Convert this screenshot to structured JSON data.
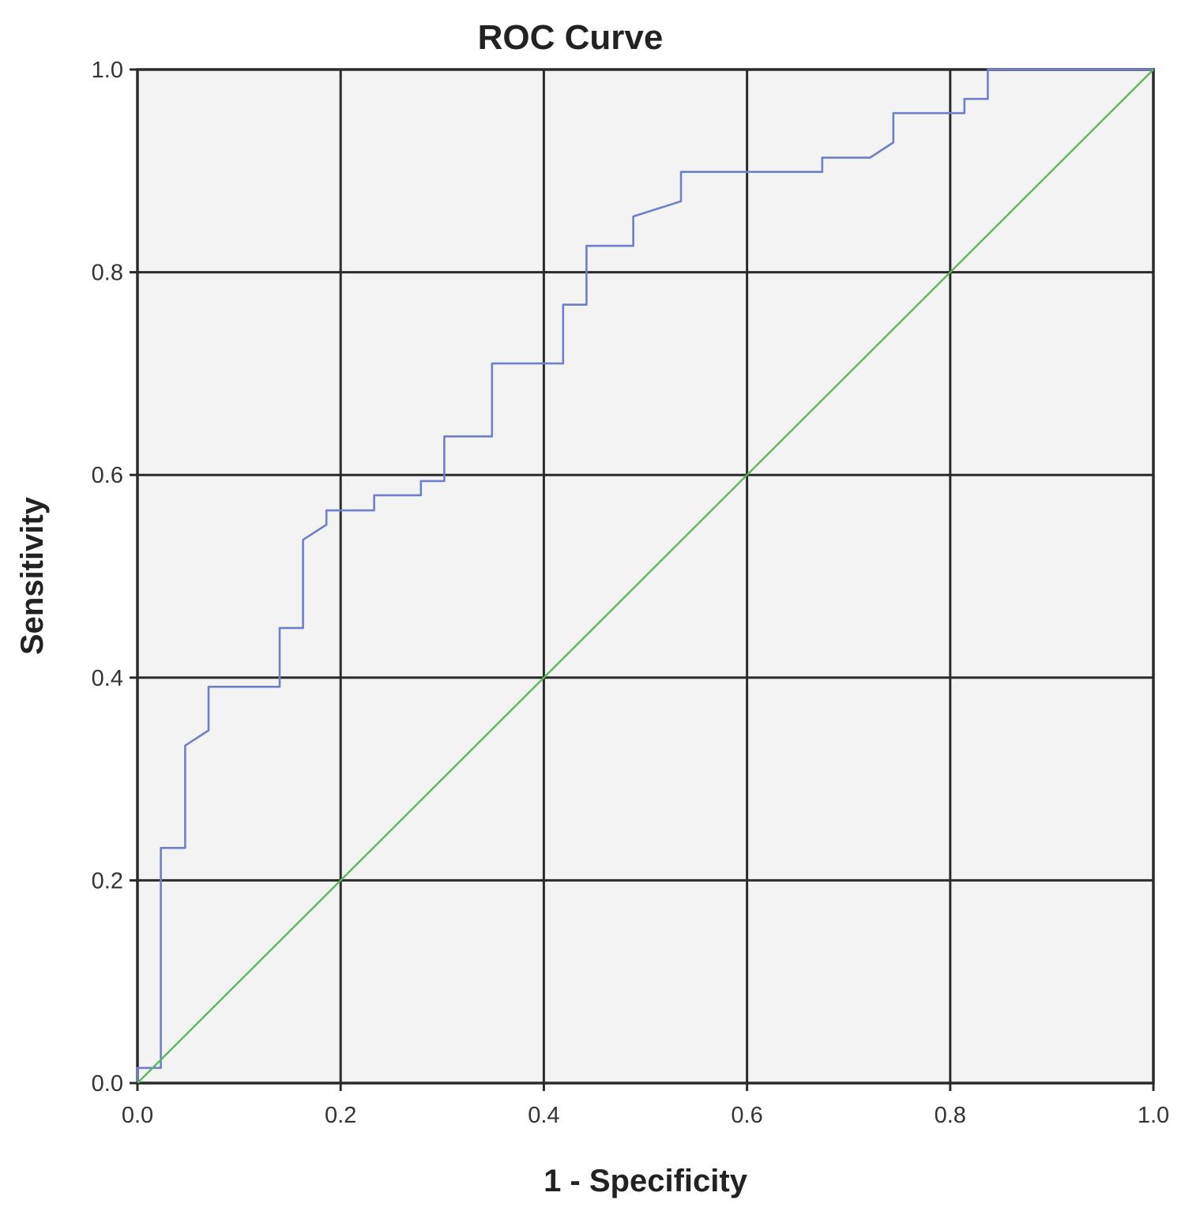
{
  "chart_data": {
    "type": "line",
    "title": "ROC Curve",
    "xlabel": "1 - Specificity",
    "ylabel": "Sensitivity",
    "xlim": [
      0,
      1
    ],
    "ylim": [
      0,
      1
    ],
    "xticks": [
      "0.0",
      "0.2",
      "0.4",
      "0.6",
      "0.8",
      "1.0"
    ],
    "yticks": [
      "0.0",
      "0.2",
      "0.4",
      "0.6",
      "0.8",
      "1.0"
    ],
    "grid": true,
    "background": "#f3f3f4",
    "series": [
      {
        "color": "#6f7fc8",
        "x": [
          0,
          0,
          0.023,
          0.023,
          0.047,
          0.047,
          0.07,
          0.07,
          0.14,
          0.14,
          0.163,
          0.163,
          0.186,
          0.186,
          0.233,
          0.233,
          0.279,
          0.279,
          0.302,
          0.302,
          0.349,
          0.349,
          0.419,
          0.419,
          0.442,
          0.442,
          0.488,
          0.488,
          0.535,
          0.535,
          0.674,
          0.674,
          0.721,
          0.744,
          0.744,
          0.814,
          0.814,
          0.837,
          0.837,
          1
        ],
        "y": [
          0,
          0.015,
          0.015,
          0.232,
          0.232,
          0.333,
          0.348,
          0.391,
          0.391,
          0.449,
          0.449,
          0.536,
          0.551,
          0.565,
          0.565,
          0.58,
          0.58,
          0.594,
          0.594,
          0.638,
          0.638,
          0.71,
          0.71,
          0.768,
          0.768,
          0.826,
          0.826,
          0.855,
          0.87,
          0.899,
          0.899,
          0.913,
          0.913,
          0.928,
          0.957,
          0.957,
          0.971,
          0.971,
          1,
          1
        ]
      },
      {
        "color": "#5cb85c",
        "x": [
          0,
          1
        ],
        "y": [
          0,
          1
        ]
      }
    ]
  }
}
